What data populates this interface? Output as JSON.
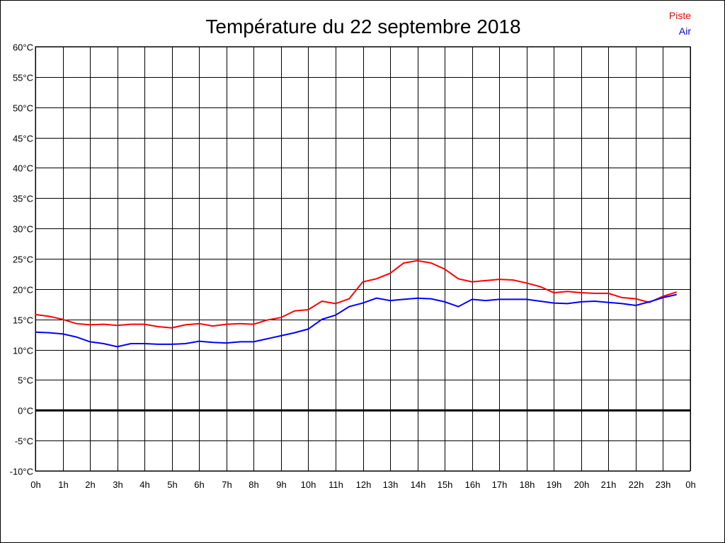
{
  "chart_data": {
    "type": "line",
    "title": "Température du 22 septembre 2018",
    "xlabel": "",
    "ylabel": "",
    "ylim": [
      -10,
      60
    ],
    "xlim": [
      0,
      24
    ],
    "grid": true,
    "legend_position": "top-right",
    "y_ticks": [
      {
        "v": 60,
        "label": "60°C"
      },
      {
        "v": 55,
        "label": "55°C"
      },
      {
        "v": 50,
        "label": "50°C"
      },
      {
        "v": 45,
        "label": "45°C"
      },
      {
        "v": 40,
        "label": "40°C"
      },
      {
        "v": 35,
        "label": "35°C"
      },
      {
        "v": 30,
        "label": "30°C"
      },
      {
        "v": 25,
        "label": "25°C"
      },
      {
        "v": 20,
        "label": "20°C"
      },
      {
        "v": 15,
        "label": "15°C"
      },
      {
        "v": 10,
        "label": "10°C"
      },
      {
        "v": 5,
        "label": "5°C"
      },
      {
        "v": 0,
        "label": "0°C"
      },
      {
        "v": -5,
        "label": "-5°C"
      },
      {
        "v": -10,
        "label": "-10°C"
      }
    ],
    "x_ticks": [
      "0h",
      "1h",
      "2h",
      "3h",
      "4h",
      "5h",
      "6h",
      "7h",
      "8h",
      "9h",
      "10h",
      "11h",
      "12h",
      "13h",
      "14h",
      "15h",
      "16h",
      "17h",
      "18h",
      "19h",
      "20h",
      "21h",
      "22h",
      "23h",
      "0h"
    ],
    "x_step_hours": 0.5,
    "series": [
      {
        "name": "Piste",
        "color": "#ff0000",
        "values": [
          15.8,
          15.5,
          15.0,
          14.3,
          14.1,
          14.2,
          14.0,
          14.2,
          14.2,
          13.8,
          13.6,
          14.1,
          14.3,
          13.9,
          14.2,
          14.3,
          14.2,
          14.9,
          15.3,
          16.4,
          16.6,
          18.0,
          17.6,
          18.4,
          21.2,
          21.7,
          22.6,
          24.3,
          24.7,
          24.3,
          23.3,
          21.7,
          21.2,
          21.4,
          21.6,
          21.5,
          21.0,
          20.4,
          19.4,
          19.6,
          19.4,
          19.3,
          19.3,
          18.6,
          18.4,
          17.8,
          18.8,
          19.5
        ]
      },
      {
        "name": "Air",
        "color": "#0000ff",
        "values": [
          12.9,
          12.8,
          12.6,
          12.1,
          11.3,
          11.0,
          10.5,
          11.0,
          11.0,
          10.9,
          10.9,
          11.0,
          11.4,
          11.2,
          11.1,
          11.3,
          11.3,
          11.8,
          12.3,
          12.8,
          13.4,
          15.0,
          15.7,
          17.1,
          17.7,
          18.5,
          18.1,
          18.3,
          18.5,
          18.4,
          17.9,
          17.1,
          18.3,
          18.1,
          18.3,
          18.3,
          18.3,
          18.0,
          17.7,
          17.6,
          17.9,
          18.0,
          17.8,
          17.6,
          17.3,
          17.9,
          18.6,
          19.1
        ]
      }
    ]
  }
}
